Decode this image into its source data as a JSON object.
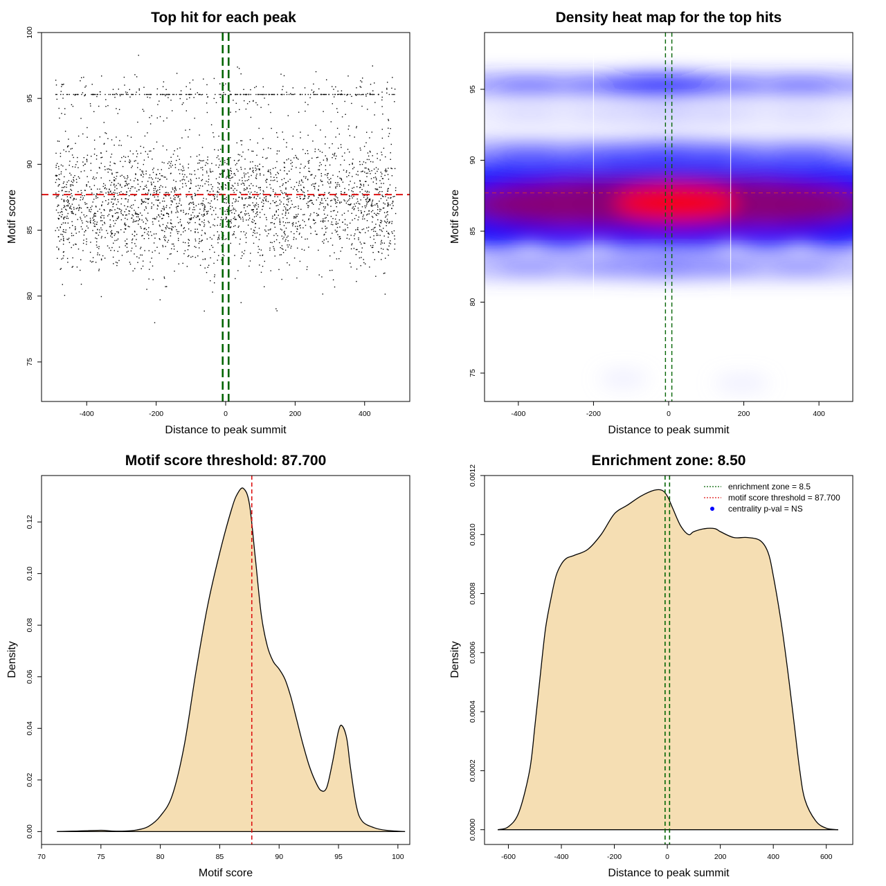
{
  "chart_data": [
    {
      "type": "scatter",
      "title": "Top hit for each peak",
      "xlabel": "Distance to peak summit",
      "ylabel": "Motif score",
      "xlim": [
        -530,
        530
      ],
      "ylim": [
        72,
        100
      ],
      "xticks": [
        -400,
        -200,
        0,
        200,
        400
      ],
      "yticks": [
        75,
        80,
        85,
        90,
        95,
        100
      ],
      "point_count": 3200,
      "threshold_y": 87.7,
      "zone_x": [
        -8.5,
        8.5
      ],
      "threshold_color": "#dd1111",
      "zone_color": "#006400"
    },
    {
      "type": "heatmap",
      "title": "Density heat map for the top hits",
      "xlabel": "Distance to peak summit",
      "ylabel": "Motif score",
      "xlim": [
        -490,
        490
      ],
      "ylim": [
        73,
        99
      ],
      "xticks": [
        -400,
        -200,
        0,
        200,
        400
      ],
      "yticks": [
        75,
        80,
        85,
        90,
        95
      ],
      "threshold_y": 87.7,
      "zone_x": [
        -8.5,
        8.5
      ],
      "colors": [
        "#ffffff",
        "#0000ff",
        "#ff0000"
      ]
    },
    {
      "type": "area",
      "title": "Motif score threshold: 87.700",
      "xlabel": "Motif score",
      "ylabel": "Density",
      "xlim": [
        70,
        101
      ],
      "ylim": [
        -0.005,
        0.138
      ],
      "xticks": [
        70,
        75,
        80,
        85,
        90,
        95,
        100
      ],
      "yticks": [
        0.0,
        0.02,
        0.04,
        0.06,
        0.08,
        0.1,
        0.12
      ],
      "ytick_labels": [
        "0.00",
        "0.02",
        "0.04",
        "0.06",
        "0.08",
        "0.10",
        "0.12"
      ],
      "x": [
        71.3,
        73,
        75,
        76,
        77,
        78,
        79,
        80,
        81,
        82,
        83,
        84,
        85,
        86,
        86.5,
        87,
        87.5,
        88,
        88.5,
        89,
        89.5,
        90,
        90.5,
        91,
        91.5,
        92,
        92.5,
        93,
        93.5,
        94,
        94.5,
        95,
        95.3,
        95.7,
        96,
        96.5,
        97,
        98,
        99,
        100.6
      ],
      "y": [
        0.0,
        0.0002,
        0.0005,
        0.0002,
        0.0002,
        0.0006,
        0.002,
        0.006,
        0.014,
        0.033,
        0.062,
        0.088,
        0.108,
        0.125,
        0.131,
        0.133,
        0.127,
        0.106,
        0.084,
        0.072,
        0.066,
        0.063,
        0.059,
        0.052,
        0.043,
        0.034,
        0.026,
        0.02,
        0.016,
        0.017,
        0.027,
        0.039,
        0.041,
        0.036,
        0.025,
        0.01,
        0.004,
        0.0015,
        0.0005,
        0.0
      ],
      "threshold_x": 87.7,
      "fill_color": "#f5deb3",
      "threshold_color": "#dd1111"
    },
    {
      "type": "area",
      "title": "Enrichment zone: 8.50",
      "xlabel": "Distance to peak summit",
      "ylabel": "Density",
      "xlim": [
        -690,
        700
      ],
      "ylim": [
        -5e-05,
        0.0012
      ],
      "xticks": [
        -600,
        -400,
        -200,
        0,
        200,
        400,
        600
      ],
      "yticks": [
        0.0,
        0.0002,
        0.0004,
        0.0006,
        0.0008,
        0.001,
        0.0012
      ],
      "ytick_labels": [
        "0.0000",
        "0.0002",
        "0.0004",
        "0.0006",
        "0.0008",
        "0.0010",
        "0.0012"
      ],
      "x": [
        -640,
        -600,
        -560,
        -520,
        -500,
        -480,
        -460,
        -440,
        -420,
        -400,
        -380,
        -350,
        -300,
        -250,
        -200,
        -150,
        -100,
        -50,
        -20,
        0,
        20,
        50,
        80,
        100,
        140,
        180,
        200,
        250,
        300,
        350,
        380,
        400,
        430,
        460,
        480,
        500,
        520,
        560,
        600,
        645
      ],
      "y": [
        0.0,
        1e-05,
        6e-05,
        0.0002,
        0.00035,
        0.00052,
        0.00068,
        0.00078,
        0.00086,
        0.0009,
        0.00092,
        0.00093,
        0.00095,
        0.001,
        0.00107,
        0.0011,
        0.00113,
        0.00115,
        0.00115,
        0.00113,
        0.00109,
        0.00103,
        0.001,
        0.00101,
        0.00102,
        0.00102,
        0.00101,
        0.00099,
        0.00099,
        0.00098,
        0.00094,
        0.00086,
        0.0007,
        0.0005,
        0.00035,
        0.0002,
        0.0001,
        3e-05,
        5e-06,
        0.0
      ],
      "zone_x": [
        -8.5,
        8.5
      ],
      "fill_color": "#f5deb3",
      "zone_color": "#006400",
      "legend": {
        "position": "top-right",
        "entries": [
          {
            "label": "enrichment zone = 8.5",
            "color": "#006400",
            "style": "dotted-line"
          },
          {
            "label": "motif score threshold = 87.700",
            "color": "#dd1111",
            "style": "dotted-line"
          },
          {
            "label": "centrality p-val = NS",
            "color": "#0000ff",
            "style": "point"
          }
        ]
      }
    }
  ]
}
